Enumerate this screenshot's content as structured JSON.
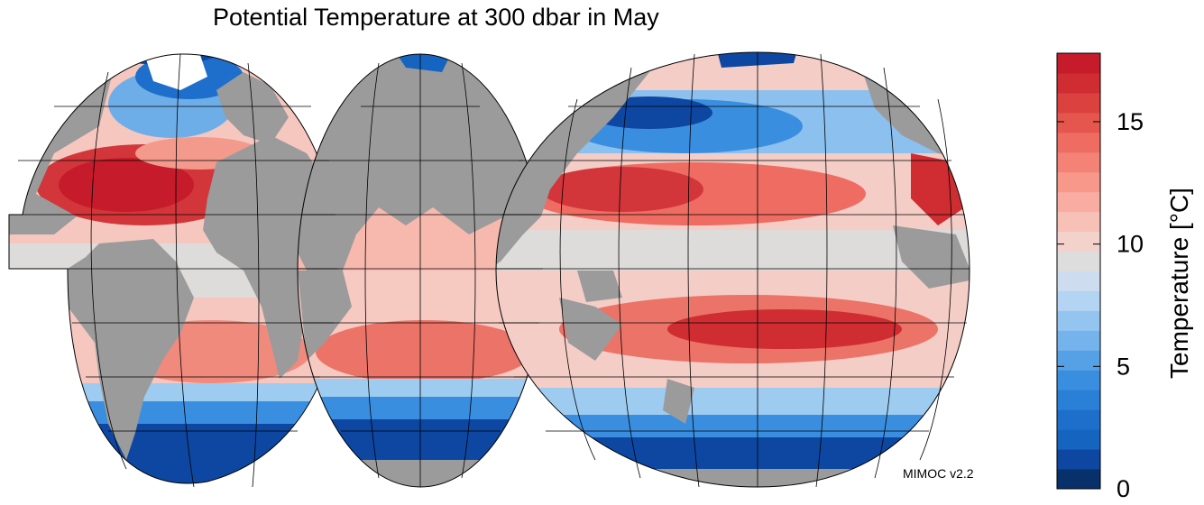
{
  "title": "Potential Temperature at 300 dbar in May",
  "credit": "MIMOC v2.2",
  "colorbar": {
    "label": "Temperature [°C]",
    "ticks": [
      {
        "value": 0,
        "label": "0"
      },
      {
        "value": 5,
        "label": "5"
      },
      {
        "value": 10,
        "label": "10"
      },
      {
        "value": 15,
        "label": "15"
      }
    ],
    "min": 0,
    "max": 17.8,
    "colors_low_to_high": [
      "#08306b",
      "#0d47a1",
      "#1565c0",
      "#1e6fcc",
      "#2a7fd6",
      "#3a8ee0",
      "#56a0e6",
      "#74b3ec",
      "#93c5f0",
      "#b3d4f2",
      "#cddcef",
      "#dddddd",
      "#f4d2cc",
      "#f8c1b8",
      "#f9ada2",
      "#f8988b",
      "#f48276",
      "#ee6c62",
      "#e5564f",
      "#db413f",
      "#cf2d32",
      "#c51b2a"
    ]
  },
  "colors": {
    "land": "#9b9b9b",
    "background": "#ffffff",
    "graticule": "#000000"
  },
  "panels": [
    {
      "name": "atlantic"
    },
    {
      "name": "indian"
    },
    {
      "name": "pacific"
    }
  ]
}
